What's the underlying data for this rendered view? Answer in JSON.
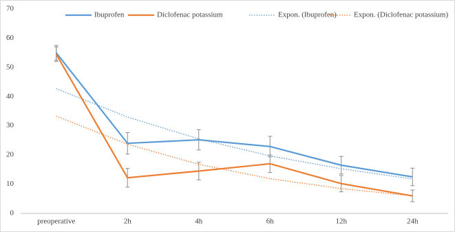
{
  "chart_data": {
    "type": "line",
    "categories": [
      "preoperative",
      "2h",
      "4h",
      "6h",
      "12h",
      "24h"
    ],
    "ylim": [
      0,
      70
    ],
    "yticks": [
      0,
      10,
      20,
      30,
      40,
      50,
      60,
      70
    ],
    "grid": false,
    "legend": "top",
    "series": [
      {
        "name": "Ibuprofen",
        "color": "#5b9bd5",
        "style": "solid",
        "values": [
          55,
          24,
          25.2,
          22.9,
          16.5,
          12.5
        ],
        "errors": [
          2.5,
          3.7,
          3.5,
          3.5,
          3,
          3
        ]
      },
      {
        "name": "Diclofenac potassium",
        "color": "#ed7d31",
        "style": "solid",
        "values": [
          54.5,
          12.2,
          14.5,
          17,
          10.2,
          6
        ],
        "errors": [
          2.5,
          3.2,
          3,
          3,
          2.8,
          2
        ]
      },
      {
        "name": "Expon. (Ibuprofen)",
        "color": "#5b9bd5",
        "style": "dotted",
        "values": [
          42.7,
          33,
          25.5,
          19.7,
          15.3,
          11.8
        ]
      },
      {
        "name": "Expon. (Diclofenac potassium)",
        "color": "#ed7d31",
        "style": "dotted",
        "values": [
          33.3,
          23.7,
          16.8,
          11.9,
          8.5,
          6
        ]
      }
    ]
  }
}
